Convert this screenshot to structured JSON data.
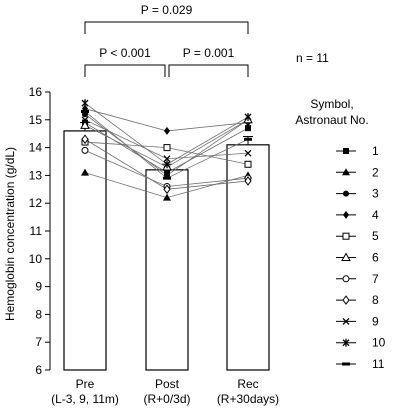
{
  "chart_data": {
    "type": "bar",
    "ylabel": "Hemoglobin concentration (g/dL)",
    "ylim": [
      6,
      16
    ],
    "yticks": [
      "6",
      "7",
      "8",
      "9",
      "10",
      "11",
      "12",
      "13",
      "14",
      "15",
      "16"
    ],
    "categories": [
      {
        "line1": "Pre",
        "line2": "(L-3, 9, 11m)"
      },
      {
        "line1": "Post",
        "line2": "(R+0/3d)"
      },
      {
        "line1": "Rec",
        "line2": "(R+30days)"
      }
    ],
    "values": [
      14.6,
      13.2,
      14.1
    ],
    "error": [
      0.3,
      0.2,
      0.3
    ],
    "comparisons": [
      {
        "label": "P = 0.029",
        "from": 0,
        "to": 2
      },
      {
        "label": "P < 0.001",
        "from": 0,
        "to": 1
      },
      {
        "label": "P = 0.001",
        "from": 1,
        "to": 2
      }
    ],
    "n_label": "n = 11",
    "legend": {
      "title_line1": "Symbol,",
      "title_line2": "Astronaut No.",
      "placement": "right"
    },
    "series": [
      {
        "name": "1",
        "marker": "square-filled",
        "values": [
          14.9,
          13.1,
          14.7
        ]
      },
      {
        "name": "2",
        "marker": "triangle-filled",
        "values": [
          13.1,
          12.2,
          13.0
        ]
      },
      {
        "name": "3",
        "marker": "circle-filled",
        "values": [
          15.2,
          13.0,
          15.0
        ]
      },
      {
        "name": "4",
        "marker": "diamond-filled",
        "values": [
          15.4,
          14.6,
          14.9
        ]
      },
      {
        "name": "5",
        "marker": "square-open",
        "values": [
          14.2,
          14.0,
          13.4
        ]
      },
      {
        "name": "6",
        "marker": "triangle-open",
        "values": [
          14.8,
          13.3,
          15.0
        ]
      },
      {
        "name": "7",
        "marker": "circle-open",
        "values": [
          13.9,
          12.6,
          12.9
        ]
      },
      {
        "name": "8",
        "marker": "diamond-open",
        "values": [
          14.3,
          12.5,
          12.8
        ]
      },
      {
        "name": "9",
        "marker": "x",
        "values": [
          15.0,
          13.6,
          13.8
        ]
      },
      {
        "name": "10",
        "marker": "asterisk",
        "values": [
          15.6,
          13.4,
          15.1
        ]
      },
      {
        "name": "11",
        "marker": "dash",
        "values": [
          15.3,
          12.9,
          14.3
        ]
      }
    ]
  }
}
